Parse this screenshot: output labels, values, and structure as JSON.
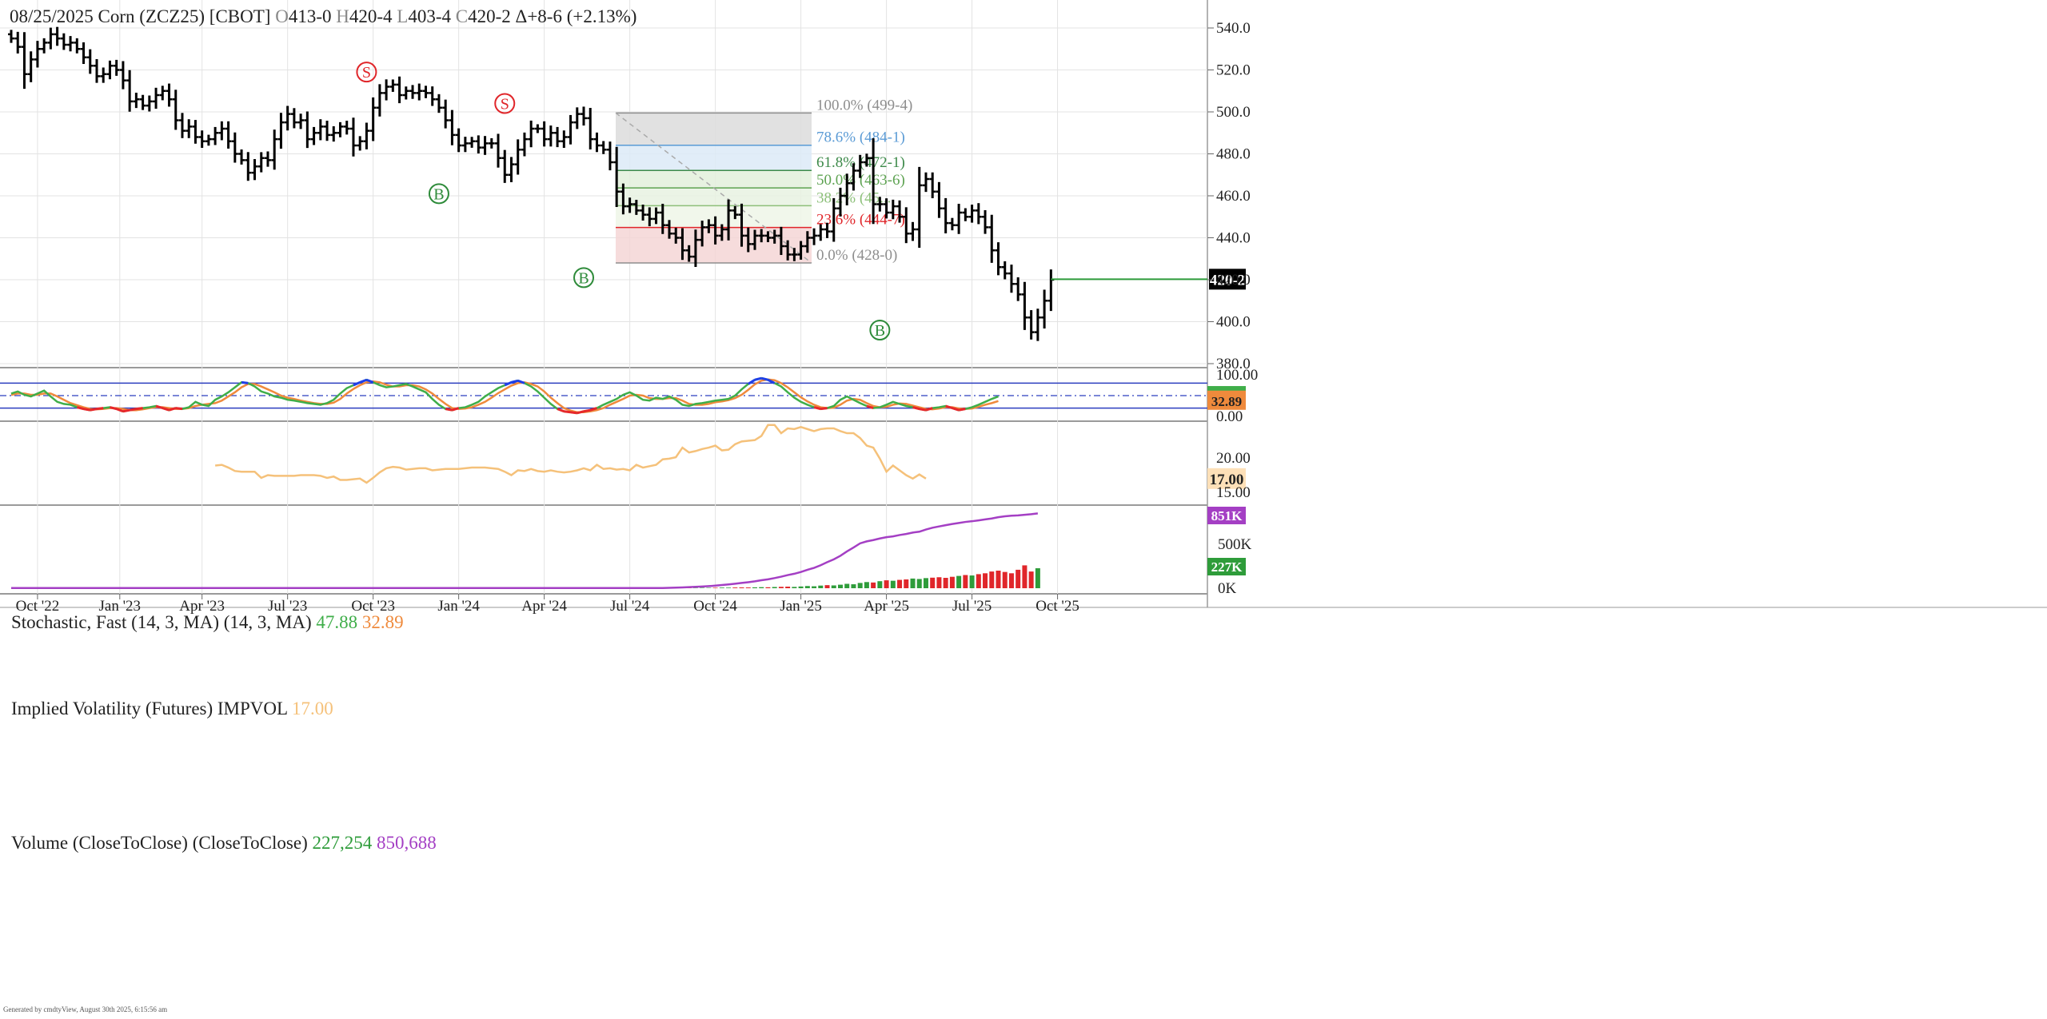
{
  "header": {
    "date": "08/25/2025",
    "symbol": "Corn (ZCZ25) [CBOT]",
    "open_label": "O",
    "open": "413-0",
    "high_label": "H",
    "high": "420-4",
    "low_label": "L",
    "low": "403-4",
    "close_label": "C",
    "close": "420-2",
    "change": "Δ+8-6 (+2.13%)"
  },
  "footer": "Generated by cmdtyView, August 30th 2025, 6:15:56 am",
  "colors": {
    "accent_green": "#2e9c3a",
    "accent_red": "#e0262a",
    "signal_s": "#e0262a",
    "signal_b": "#2e8b3a",
    "stoch_k": "#3fae49",
    "stoch_d": "#ef8a3c",
    "stoch_over": "#1f3fe8",
    "stoch_under": "#e8262a",
    "ivol": "#f5c17a",
    "vol_cum": "#a43fc4",
    "price_tag_bg": "#000000"
  },
  "chart_data": [
    {
      "type": "ohlc",
      "panel": "price",
      "x_axis_labels": [
        "Oct '22",
        "Jan '23",
        "Apr '23",
        "Jul '23",
        "Oct '23",
        "Jan '24",
        "Apr '24",
        "Jul '24",
        "Oct '24",
        "Jan '25",
        "Apr '25",
        "Jul '25",
        "Oct '25"
      ],
      "y_axis_ticks": [
        "540.0",
        "520.0",
        "500.0",
        "480.0",
        "460.0",
        "440.0",
        "420.0",
        "400.0",
        "380.0"
      ],
      "ylim": [
        378,
        546
      ],
      "last_price_label": "420-2",
      "last_price": 420.25,
      "weekly_closes": [
        535,
        531,
        518,
        525,
        530,
        533,
        537,
        535,
        532,
        533,
        530,
        526,
        522,
        517,
        518,
        522,
        520,
        515,
        505,
        506,
        503,
        505,
        508,
        510,
        506,
        496,
        491,
        493,
        488,
        486,
        487,
        490,
        492,
        486,
        480,
        477,
        471,
        474,
        478,
        477,
        487,
        495,
        499,
        495,
        496,
        487,
        490,
        493,
        489,
        490,
        493,
        492,
        484,
        486,
        491,
        502,
        509,
        512,
        513,
        508,
        510,
        509,
        510,
        509,
        506,
        502,
        496,
        489,
        484,
        485,
        486,
        483,
        485,
        485,
        478,
        470,
        475,
        482,
        487,
        492,
        492,
        487,
        490,
        486,
        488,
        495,
        499,
        497,
        487,
        484,
        482,
        476,
        462,
        455,
        456,
        453,
        451,
        449,
        452,
        446,
        442,
        440,
        434,
        431,
        439,
        445,
        446,
        441,
        444,
        453,
        451,
        441,
        437,
        441,
        441,
        440,
        441,
        436,
        432,
        432,
        436,
        440,
        441,
        444,
        443,
        454,
        460,
        466,
        472,
        476,
        478,
        456,
        456,
        452,
        455,
        450,
        442,
        444,
        465,
        468,
        462,
        454,
        447,
        446,
        452,
        450,
        453,
        450,
        445,
        434,
        426,
        423,
        418,
        413,
        402,
        395,
        402,
        410,
        420
      ],
      "fibonacci": {
        "high_price": 499.5,
        "low_price": 428,
        "levels": [
          {
            "label": "100.0% (499-4)",
            "price": 499.5,
            "color": "#8e8e8e"
          },
          {
            "label": "78.6% (484-1)",
            "price": 484.1,
            "color": "#5b9bd5"
          },
          {
            "label": "61.8% (472-1)",
            "price": 472.1,
            "color": "#3d8a4a"
          },
          {
            "label": "50.0% (463-6)",
            "price": 463.75,
            "color": "#5ea352"
          },
          {
            "label": "38.2% (45...",
            "price": 455.3,
            "color": "#8dc07a"
          },
          {
            "label": "23.6% (444-7)",
            "price": 444.9,
            "color": "#e0262a"
          },
          {
            "label": "0.0% (428-0)",
            "price": 428.0,
            "color": "#8e8e8e"
          }
        ]
      },
      "signals": [
        {
          "type": "S",
          "week": 54,
          "price": 519
        },
        {
          "type": "S",
          "week": 75,
          "price": 504
        },
        {
          "type": "B",
          "week": 65,
          "price": 461
        },
        {
          "type": "B",
          "week": 87,
          "price": 421
        },
        {
          "type": "B",
          "week": 132,
          "price": 396
        }
      ]
    },
    {
      "type": "line",
      "panel": "stochastic",
      "title": "Stochastic, Fast (14, 3, MA)",
      "params": "(14, 3, MA)",
      "k_value": "47.88",
      "d_value": "32.89",
      "y_axis_ticks": [
        "100.00",
        "0.00"
      ],
      "ylim": [
        0,
        100
      ],
      "overbought": 80,
      "oversold": 20,
      "midline": 50,
      "series": [
        {
          "name": "47.88",
          "values": [
            55,
            60,
            52,
            48,
            55,
            62,
            48,
            35,
            30,
            28,
            22,
            18,
            15,
            18,
            20,
            22,
            18,
            12,
            15,
            18,
            20,
            22,
            25,
            20,
            15,
            20,
            18,
            22,
            35,
            28,
            25,
            40,
            48,
            58,
            70,
            82,
            80,
            72,
            60,
            55,
            48,
            45,
            40,
            38,
            35,
            32,
            30,
            28,
            32,
            40,
            55,
            68,
            75,
            82,
            88,
            82,
            75,
            70,
            72,
            75,
            78,
            72,
            65,
            58,
            42,
            28,
            18,
            15,
            20,
            22,
            28,
            35,
            48,
            58,
            68,
            75,
            82,
            86,
            80,
            72,
            60,
            45,
            30,
            18,
            12,
            10,
            8,
            12,
            15,
            20,
            28,
            35,
            42,
            52,
            58,
            50,
            40,
            38,
            45,
            42,
            48,
            40,
            28,
            25,
            30,
            32,
            35,
            38,
            40,
            42,
            50,
            65,
            78,
            88,
            92,
            88,
            80,
            72,
            58,
            45,
            35,
            28,
            22,
            18,
            20,
            25,
            40,
            48,
            40,
            32,
            25,
            20,
            22,
            28,
            35,
            30,
            25,
            22,
            18,
            15,
            20,
            22,
            25,
            20,
            15,
            18,
            22,
            28,
            35,
            42,
            48
          ]
        },
        {
          "name": "32.89",
          "values": [
            52,
            55,
            55,
            52,
            52,
            55,
            55,
            48,
            40,
            32,
            27,
            22,
            18,
            17,
            18,
            20,
            20,
            18,
            15,
            15,
            17,
            20,
            22,
            22,
            20,
            18,
            18,
            20,
            25,
            28,
            30,
            32,
            38,
            48,
            58,
            70,
            78,
            78,
            72,
            65,
            58,
            50,
            45,
            42,
            38,
            35,
            32,
            30,
            30,
            33,
            42,
            55,
            66,
            75,
            82,
            84,
            82,
            76,
            72,
            72,
            75,
            75,
            72,
            65,
            55,
            42,
            30,
            20,
            18,
            19,
            22,
            28,
            35,
            45,
            56,
            65,
            74,
            80,
            82,
            78,
            72,
            60,
            45,
            32,
            20,
            14,
            10,
            10,
            12,
            15,
            20,
            28,
            35,
            42,
            50,
            52,
            50,
            44,
            42,
            42,
            44,
            44,
            38,
            30,
            28,
            28,
            30,
            34,
            36,
            39,
            44,
            52,
            64,
            77,
            86,
            89,
            87,
            80,
            70,
            58,
            46,
            36,
            28,
            22,
            20,
            21,
            28,
            38,
            42,
            40,
            32,
            25,
            22,
            23,
            28,
            31,
            30,
            26,
            22,
            18,
            17,
            19,
            22,
            22,
            19,
            18,
            19,
            23,
            28,
            32,
            37
          ]
        }
      ]
    },
    {
      "type": "line",
      "panel": "implied_volatility",
      "title": "Implied Volatility (Futures)",
      "label": "IMPVOL",
      "value": "17.00",
      "y_axis_ticks": [
        "20.00",
        "15.00"
      ],
      "ylim": [
        14,
        27
      ],
      "last_tag": "17.00",
      "start_week": 31,
      "series": [
        {
          "name": "17.00",
          "values": [
            18.9,
            19.0,
            18.6,
            18.1,
            18.0,
            18.0,
            18.0,
            17.1,
            17.5,
            17.4,
            17.4,
            17.4,
            17.4,
            17.5,
            17.5,
            17.5,
            17.4,
            17.1,
            17.3,
            16.8,
            16.8,
            16.9,
            17.0,
            16.4,
            17.1,
            17.9,
            18.5,
            18.7,
            18.6,
            18.3,
            18.4,
            18.5,
            18.5,
            18.2,
            18.3,
            18.4,
            18.4,
            18.4,
            18.5,
            18.6,
            18.6,
            18.6,
            18.5,
            18.4,
            18.0,
            17.5,
            18.2,
            18.1,
            18.4,
            18.1,
            18.0,
            18.2,
            18.0,
            17.9,
            18.0,
            18.2,
            18.5,
            18.2,
            19.0,
            18.4,
            18.5,
            18.3,
            18.4,
            18.2,
            19.0,
            18.6,
            18.8,
            19.0,
            19.8,
            19.9,
            20.1,
            21.5,
            20.8,
            21.0,
            21.3,
            21.5,
            21.8,
            21.1,
            21.2,
            22.0,
            22.4,
            22.5,
            22.6,
            23.2,
            24.8,
            24.8,
            23.6,
            24.3,
            24.2,
            24.5,
            24.2,
            23.9,
            24.2,
            24.3,
            24.3,
            23.9,
            23.6,
            23.6,
            22.9,
            21.8,
            21.5,
            19.9,
            18.0,
            18.9,
            18.2,
            17.5,
            17.0,
            17.6,
            17.0
          ]
        }
      ]
    },
    {
      "type": "bar",
      "panel": "volume",
      "title": "Volume (CloseToClose)",
      "params": "(CloseToClose)",
      "volume_value": "227,254",
      "cumulative_value": "850,688",
      "y_axis_ticks": [
        "500K",
        "0K"
      ],
      "tags": [
        "851K",
        "227K"
      ],
      "ylim": [
        0,
        860000
      ],
      "series": [
        {
          "name": "227,254",
          "start_week": 100,
          "values": [
            2000,
            3000,
            2500,
            4000,
            3500,
            5000,
            4500,
            6000,
            7000,
            6500,
            8000,
            9000,
            8500,
            10000,
            12000,
            11000,
            14000,
            16000,
            18000,
            15000,
            20000,
            25000,
            22000,
            30000,
            35000,
            32000,
            40000,
            50000,
            45000,
            60000,
            70000,
            65000,
            80000,
            90000,
            85000,
            95000,
            100000,
            110000,
            105000,
            115000,
            120000,
            125000,
            118000,
            130000,
            140000,
            150000,
            145000,
            160000,
            170000,
            190000,
            200000,
            185000,
            170000,
            210000,
            260000,
            190000,
            227254
          ]
        },
        {
          "name": "850,688",
          "start_week": 0,
          "values": [
            2000,
            2000,
            2000,
            2000,
            2000,
            2000,
            2000,
            2000,
            2000,
            2000,
            2000,
            2000,
            2000,
            2000,
            2000,
            2000,
            2000,
            2000,
            2000,
            2000,
            2000,
            2000,
            2000,
            2000,
            2000,
            2000,
            2000,
            2000,
            2000,
            2000,
            2000,
            2000,
            2000,
            2000,
            2000,
            2000,
            2000,
            2000,
            2000,
            2000,
            2000,
            2000,
            2000,
            2000,
            2000,
            2000,
            2000,
            2000,
            2000,
            2000,
            2000,
            2000,
            2000,
            2000,
            2000,
            2000,
            2000,
            2000,
            2000,
            2000,
            2000,
            2000,
            2000,
            2000,
            2000,
            2000,
            2000,
            2000,
            2000,
            2000,
            2000,
            2000,
            2000,
            2000,
            2000,
            2000,
            2000,
            2000,
            2000,
            2000,
            2000,
            2000,
            2000,
            2000,
            2000,
            2000,
            2000,
            2000,
            2000,
            2000,
            2000,
            2000,
            2000,
            2000,
            2000,
            2000,
            2000,
            2000,
            2000,
            2000,
            4000,
            7000,
            9500,
            12000,
            15500,
            19000,
            23500,
            29500,
            36500,
            43000,
            51000,
            60000,
            68500,
            78500,
            90500,
            101500,
            115500,
            131500,
            149500,
            164500,
            184500,
            209500,
            231500,
            261500,
            296500,
            328500,
            368500,
            418500,
            463500,
            510500,
            533000,
            548000,
            566000,
            581000,
            590000,
            605000,
            617000,
            633000,
            643000,
            668000,
            688000,
            703000,
            717000,
            731000,
            742000,
            754000,
            762000,
            772000,
            783000,
            793000,
            808000,
            818000,
            825000,
            828000,
            835000,
            842000,
            850688
          ]
        }
      ]
    }
  ]
}
